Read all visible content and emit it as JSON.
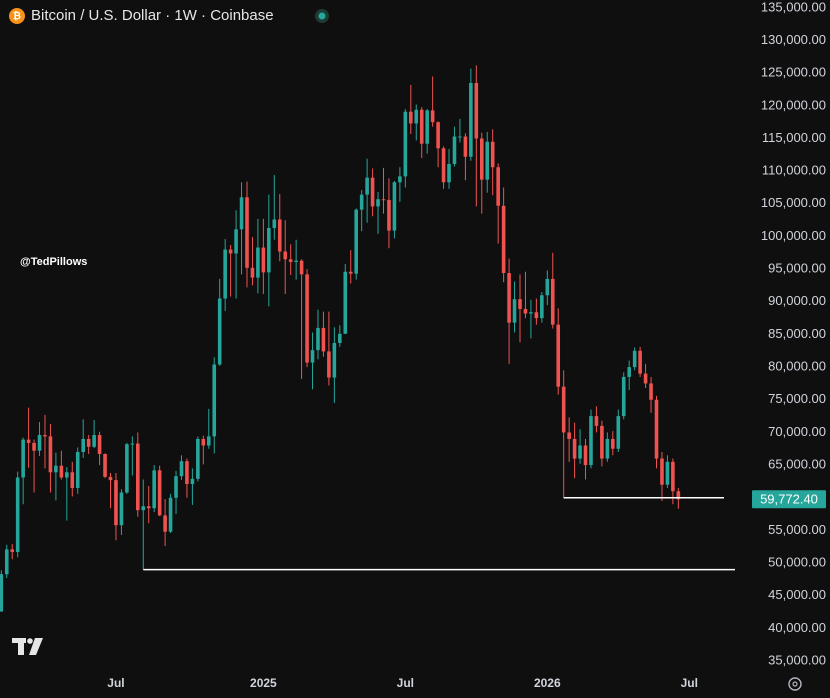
{
  "chart_data": {
    "type": "candlestick",
    "title": "Bitcoin / U.S. Dollar · 1W · Coinbase",
    "watermark": "@TedPillows",
    "categories": [
      null,
      null,
      null,
      null,
      null,
      null,
      null,
      null,
      null,
      null,
      null,
      null,
      null,
      null,
      null,
      null,
      null,
      null,
      null,
      null,
      null,
      "Jul",
      null,
      null,
      null,
      null,
      null,
      null,
      null,
      null,
      null,
      null,
      null,
      null,
      null,
      null,
      null,
      null,
      null,
      null,
      null,
      null,
      null,
      null,
      null,
      null,
      null,
      null,
      "2025",
      null,
      null,
      null,
      null,
      null,
      null,
      null,
      null,
      null,
      null,
      null,
      null,
      null,
      null,
      null,
      null,
      null,
      null,
      null,
      null,
      null,
      null,
      null,
      null,
      null,
      "Jul",
      null,
      null,
      null,
      null,
      null,
      null,
      null,
      null,
      null,
      null,
      null,
      null,
      null,
      null,
      null,
      null,
      null,
      null,
      null,
      null,
      null,
      null,
      null,
      null,
      null,
      "2026",
      null,
      null,
      null,
      null,
      null,
      null,
      null,
      null,
      null,
      null,
      null,
      null,
      null,
      null,
      null,
      null,
      null,
      null,
      null,
      null,
      null,
      null,
      null,
      null,
      null,
      "Jul"
    ],
    "ohlc": [
      [
        42600,
        48900,
        42500,
        48300
      ],
      [
        48300,
        52800,
        47700,
        52100
      ],
      [
        52100,
        52900,
        50600,
        51700
      ],
      [
        51700,
        64000,
        50900,
        63100
      ],
      [
        63100,
        69200,
        59000,
        68900
      ],
      [
        68900,
        73800,
        64600,
        68400
      ],
      [
        68400,
        68900,
        60800,
        67200
      ],
      [
        67200,
        71600,
        66400,
        69600
      ],
      [
        69600,
        72700,
        64500,
        69400
      ],
      [
        69400,
        71300,
        60800,
        63900
      ],
      [
        63900,
        66900,
        59600,
        64900
      ],
      [
        64900,
        67200,
        62800,
        63100
      ],
      [
        63100,
        64700,
        56500,
        63900
      ],
      [
        63900,
        65500,
        60200,
        61500
      ],
      [
        61500,
        67700,
        60600,
        67000
      ],
      [
        67000,
        72000,
        66100,
        69000
      ],
      [
        69000,
        69600,
        66700,
        67800
      ],
      [
        67800,
        71900,
        67600,
        69600
      ],
      [
        69600,
        70100,
        65000,
        66700
      ],
      [
        66700,
        66800,
        63000,
        63200
      ],
      [
        63200,
        63800,
        58400,
        62700
      ],
      [
        62700,
        63800,
        53500,
        55800
      ],
      [
        55800,
        61300,
        54300,
        60800
      ],
      [
        60800,
        68400,
        60600,
        68200
      ],
      [
        68200,
        69400,
        63400,
        68300
      ],
      [
        68300,
        70000,
        57100,
        58100
      ],
      [
        58100,
        62800,
        49000,
        58700
      ],
      [
        58700,
        61800,
        56100,
        58400
      ],
      [
        58400,
        65000,
        57800,
        64200
      ],
      [
        64200,
        64900,
        57200,
        57300
      ],
      [
        57300,
        59800,
        52600,
        54800
      ],
      [
        54800,
        60600,
        54600,
        60000
      ],
      [
        60000,
        64100,
        57500,
        63300
      ],
      [
        63300,
        66500,
        62700,
        65600
      ],
      [
        65600,
        66000,
        60000,
        62100
      ],
      [
        62100,
        64500,
        58900,
        62900
      ],
      [
        62900,
        69400,
        62500,
        69000
      ],
      [
        69000,
        69500,
        65100,
        68000
      ],
      [
        68000,
        73600,
        67500,
        69400
      ],
      [
        69400,
        81500,
        66800,
        80400
      ],
      [
        80400,
        93500,
        80200,
        90500
      ],
      [
        90500,
        99600,
        88600,
        98000
      ],
      [
        98000,
        98700,
        90800,
        97400
      ],
      [
        97400,
        104000,
        90500,
        101100
      ],
      [
        101100,
        108300,
        94200,
        106000
      ],
      [
        106000,
        108400,
        92200,
        95200
      ],
      [
        95200,
        99900,
        92500,
        93700
      ],
      [
        93700,
        102700,
        91300,
        98300
      ],
      [
        98300,
        102700,
        91200,
        94500
      ],
      [
        94500,
        106400,
        89300,
        101300
      ],
      [
        101300,
        109400,
        99500,
        102600
      ],
      [
        102600,
        106500,
        96200,
        97700
      ],
      [
        97700,
        102500,
        91200,
        96500
      ],
      [
        96500,
        98800,
        94100,
        96100
      ],
      [
        96100,
        99500,
        93400,
        96300
      ],
      [
        96300,
        96500,
        78200,
        94200
      ],
      [
        94200,
        95000,
        80000,
        80700
      ],
      [
        80700,
        85300,
        76600,
        82600
      ],
      [
        82600,
        88800,
        81200,
        86000
      ],
      [
        86000,
        88500,
        81600,
        82400
      ],
      [
        82400,
        88500,
        77200,
        78400
      ],
      [
        78400,
        86100,
        74500,
        83700
      ],
      [
        83700,
        86400,
        83100,
        85100
      ],
      [
        85100,
        95800,
        85100,
        94600
      ],
      [
        94600,
        97900,
        92800,
        94300
      ],
      [
        94300,
        104300,
        93400,
        104100
      ],
      [
        104100,
        107100,
        100800,
        106400
      ],
      [
        106400,
        111900,
        102100,
        109000
      ],
      [
        109000,
        110400,
        103100,
        104600
      ],
      [
        104600,
        106800,
        100400,
        105700
      ],
      [
        105700,
        110500,
        103500,
        105600
      ],
      [
        105600,
        108900,
        98200,
        100900
      ],
      [
        100900,
        108500,
        99700,
        108300
      ],
      [
        108300,
        110600,
        105300,
        109200
      ],
      [
        109200,
        119500,
        107500,
        119100
      ],
      [
        119100,
        123200,
        115700,
        117300
      ],
      [
        117300,
        120200,
        114700,
        119400
      ],
      [
        119400,
        119800,
        112000,
        114200
      ],
      [
        114200,
        119500,
        112700,
        119300
      ],
      [
        119300,
        124500,
        116800,
        117500
      ],
      [
        117500,
        117600,
        110600,
        113500
      ],
      [
        113500,
        113800,
        107300,
        108300
      ],
      [
        108300,
        113400,
        107300,
        111100
      ],
      [
        111100,
        116800,
        110700,
        115300
      ],
      [
        115300,
        118000,
        114400,
        115300
      ],
      [
        115300,
        115800,
        108600,
        112200
      ],
      [
        112200,
        125700,
        111600,
        123500
      ],
      [
        123500,
        126200,
        104600,
        115000
      ],
      [
        115000,
        115900,
        103500,
        108700
      ],
      [
        108700,
        116000,
        106700,
        114500
      ],
      [
        114500,
        116400,
        106300,
        110600
      ],
      [
        110600,
        111200,
        98900,
        104700
      ],
      [
        104700,
        107500,
        93000,
        94400
      ],
      [
        94400,
        96600,
        80500,
        86800
      ],
      [
        86800,
        93100,
        85300,
        90400
      ],
      [
        90400,
        94200,
        83800,
        88900
      ],
      [
        88900,
        94600,
        87500,
        88200
      ],
      [
        88200,
        90300,
        84400,
        88400
      ],
      [
        88400,
        90500,
        86500,
        87500
      ],
      [
        87500,
        91500,
        86800,
        91000
      ],
      [
        91000,
        94800,
        89500,
        93500
      ],
      [
        93500,
        97500,
        85900,
        86500
      ],
      [
        86500,
        89000,
        75800,
        77000
      ],
      [
        77000,
        79500,
        60000,
        70000
      ],
      [
        70000,
        72300,
        65500,
        69000
      ],
      [
        69000,
        71500,
        63000,
        66000
      ],
      [
        66000,
        70500,
        65200,
        68000
      ],
      [
        68000,
        69000,
        62800,
        65000
      ],
      [
        65000,
        73500,
        64500,
        72500
      ],
      [
        72500,
        74000,
        70000,
        71000
      ],
      [
        71000,
        71800,
        64800,
        66000
      ],
      [
        66000,
        70000,
        65500,
        69000
      ],
      [
        69000,
        70200,
        66500,
        67500
      ],
      [
        67500,
        73500,
        67000,
        72500
      ],
      [
        72500,
        79200,
        72000,
        78500
      ],
      [
        78500,
        81000,
        76500,
        80000
      ],
      [
        80000,
        83000,
        79500,
        82500
      ],
      [
        82500,
        83100,
        78500,
        79000
      ],
      [
        79000,
        80500,
        76800,
        77500
      ],
      [
        77500,
        78500,
        73000,
        75000
      ],
      [
        75000,
        75600,
        64500,
        66000
      ],
      [
        66000,
        67000,
        59500,
        62000
      ],
      [
        62000,
        66500,
        61500,
        65500
      ],
      [
        65500,
        66000,
        59000,
        61000
      ],
      [
        61000,
        61500,
        58300,
        59772.4
      ],
      null,
      null
    ],
    "up_color": "#26a69a",
    "down_color": "#ef5350",
    "ylim": [
      32100,
      136200
    ],
    "yticks": [
      {
        "value": 35000,
        "label": "35,000.00"
      },
      {
        "value": 40000,
        "label": "40,000.00"
      },
      {
        "value": 45000,
        "label": "45,000.00"
      },
      {
        "value": 50000,
        "label": "50,000.00"
      },
      {
        "value": 55000,
        "label": "55,000.00"
      },
      {
        "value": 60000,
        "label": "60,000.00"
      },
      {
        "value": 65000,
        "label": "65,000.00"
      },
      {
        "value": 70000,
        "label": "70,000.00"
      },
      {
        "value": 75000,
        "label": "75,000.00"
      },
      {
        "value": 80000,
        "label": "80,000.00"
      },
      {
        "value": 85000,
        "label": "85,000.00"
      },
      {
        "value": 90000,
        "label": "90,000.00"
      },
      {
        "value": 95000,
        "label": "95,000.00"
      },
      {
        "value": 100000,
        "label": "100,000.00"
      },
      {
        "value": 105000,
        "label": "105,000.00"
      },
      {
        "value": 110000,
        "label": "110,000.00"
      },
      {
        "value": 115000,
        "label": "115,000.00"
      },
      {
        "value": 120000,
        "label": "120,000.00"
      },
      {
        "value": 125000,
        "label": "125,000.00"
      },
      {
        "value": 130000,
        "label": "130,000.00"
      },
      {
        "value": 135000,
        "label": "135,000.00"
      }
    ],
    "last_price": {
      "value": 59772.4,
      "label": "59,772.40"
    },
    "hlines": [
      {
        "value": 60000,
        "from": 103
      },
      {
        "value": 49000,
        "from": 26
      }
    ],
    "hline_color": "#ffffff"
  }
}
